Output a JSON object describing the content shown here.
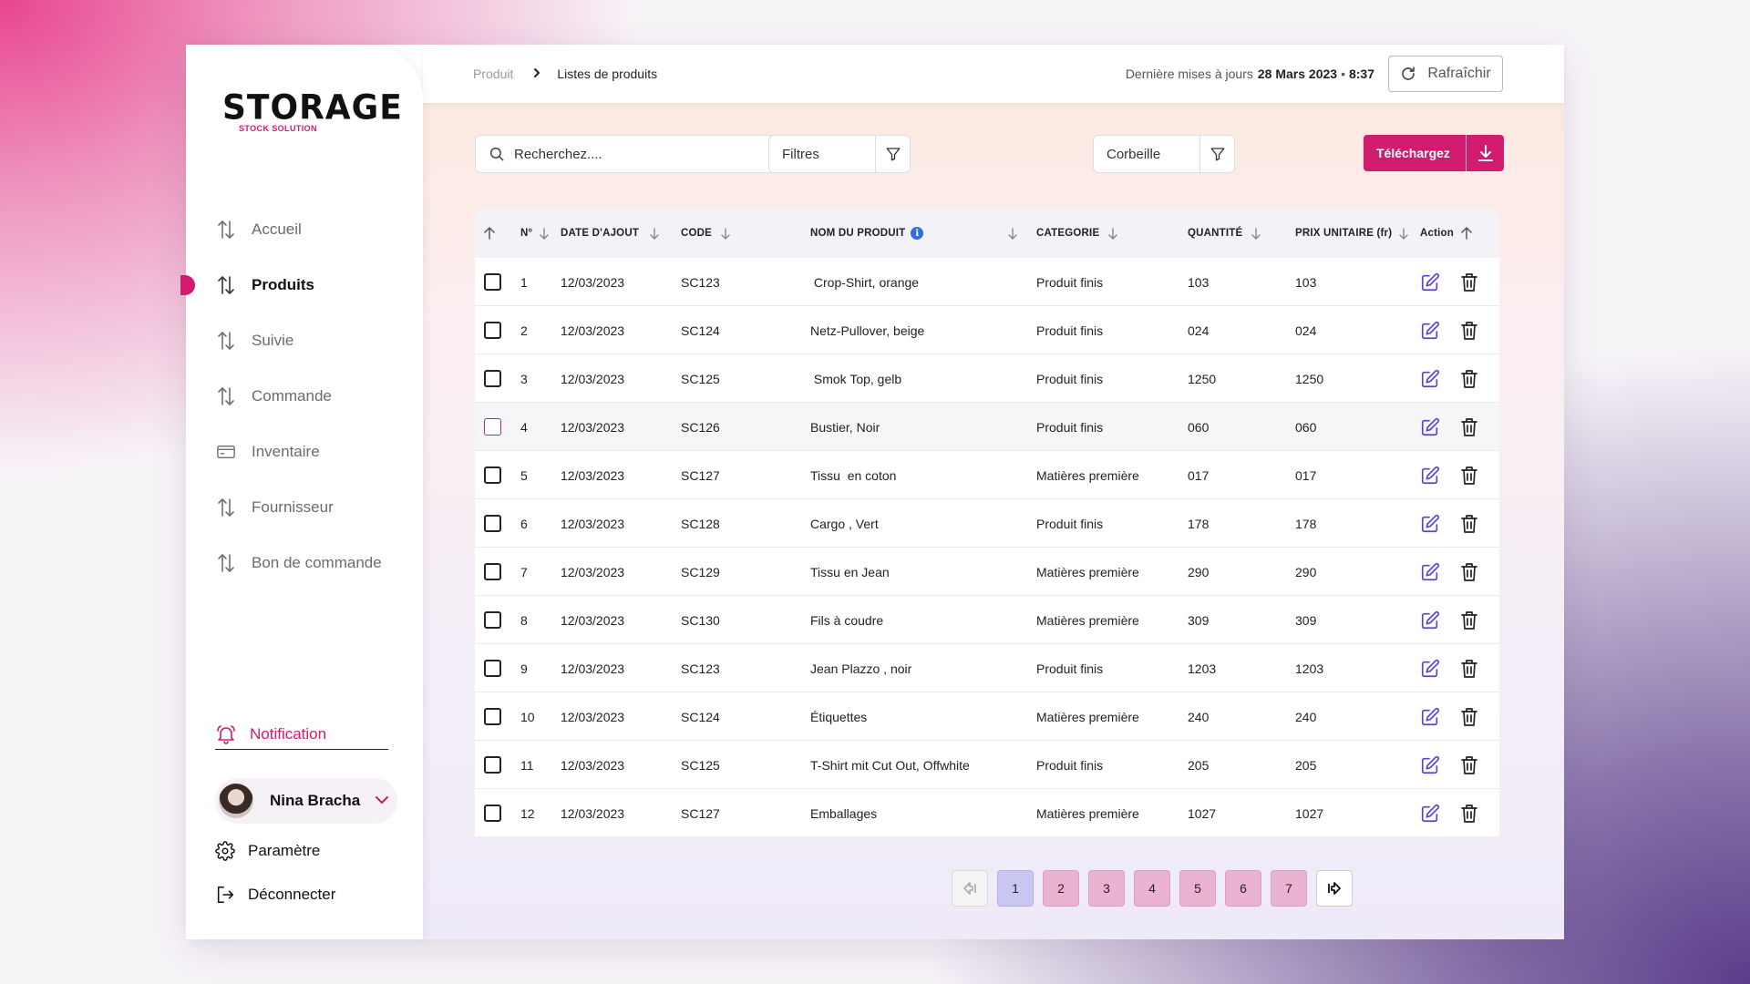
{
  "brand": {
    "name": "STORAGE",
    "tagline": "STOCK SOLUTION",
    "accent": "#d01b6e"
  },
  "nav": [
    {
      "label": "Accueil",
      "icon": "sort-arrows-icon",
      "active": false
    },
    {
      "label": "Produits",
      "icon": "sort-arrows-icon",
      "active": true
    },
    {
      "label": "Suivie",
      "icon": "sort-arrows-icon",
      "active": false
    },
    {
      "label": "Commande",
      "icon": "sort-arrows-icon",
      "active": false
    },
    {
      "label": "Inventaire",
      "icon": "card-icon",
      "active": false
    },
    {
      "label": "Fournisseur",
      "icon": "sort-arrows-icon",
      "active": false
    },
    {
      "label": "Bon de commande",
      "icon": "sort-arrows-icon",
      "active": false
    }
  ],
  "notification": {
    "label": "Notification",
    "icon": "bell-icon"
  },
  "user": {
    "name": "Nina Bracha"
  },
  "settings": {
    "label": "Paramètre",
    "icon": "gear-icon"
  },
  "logout": {
    "label": "Déconnecter",
    "icon": "logout-icon"
  },
  "breadcrumb": {
    "parent": "Produit",
    "current": "Listes de produits"
  },
  "update": {
    "prefix": "Dernière mises à jours",
    "date": "28 Mars 2023",
    "sep": "•",
    "time": "8:37"
  },
  "refresh": {
    "label": "Rafraîchir"
  },
  "search": {
    "placeholder": "Recherchez...."
  },
  "filters": {
    "label": "Filtres"
  },
  "trash": {
    "label": "Corbeille"
  },
  "download": {
    "label": "Téléchargez"
  },
  "table": {
    "headers": {
      "num": "N°",
      "date": "DATE D'AJOUT",
      "code": "CODE",
      "name": "NOM DU PRODUIT",
      "category": "CATEGORIE",
      "qty": "QUANTITÉ",
      "price": "PRIX UNITAIRE (fr)",
      "action": "Action"
    },
    "rows": [
      {
        "num": "1",
        "date": "12/03/2023",
        "code": "SC123",
        "name": " Crop-Shirt, orange",
        "category": "Produit finis",
        "qty": "103",
        "price": "103"
      },
      {
        "num": "2",
        "date": "12/03/2023",
        "code": "SC124",
        "name": "Netz-Pullover, beige",
        "category": "Produit finis",
        "qty": "024",
        "price": "024"
      },
      {
        "num": "3",
        "date": "12/03/2023",
        "code": "SC125",
        "name": " Smok Top, gelb",
        "category": "Produit finis",
        "qty": "1250",
        "price": "1250"
      },
      {
        "num": "4",
        "date": "12/03/2023",
        "code": "SC126",
        "name": "Bustier, Noir",
        "category": "Produit finis",
        "qty": "060",
        "price": "060"
      },
      {
        "num": "5",
        "date": "12/03/2023",
        "code": "SC127",
        "name": "Tissu  en coton",
        "category": "Matières première",
        "qty": "017",
        "price": "017"
      },
      {
        "num": "6",
        "date": "12/03/2023",
        "code": "SC128",
        "name": "Cargo , Vert",
        "category": "Produit finis",
        "qty": "178",
        "price": "178"
      },
      {
        "num": "7",
        "date": "12/03/2023",
        "code": "SC129",
        "name": "Tissu en Jean",
        "category": "Matières première",
        "qty": "290",
        "price": "290"
      },
      {
        "num": "8",
        "date": "12/03/2023",
        "code": "SC130",
        "name": "Fils à coudre",
        "category": "Matières première",
        "qty": "309",
        "price": "309"
      },
      {
        "num": "9",
        "date": "12/03/2023",
        "code": "SC123",
        "name": "Jean Plazzo , noir",
        "category": "Produit finis",
        "qty": "1203",
        "price": "1203"
      },
      {
        "num": "10",
        "date": "12/03/2023",
        "code": "SC124",
        "name": "Étiquettes",
        "category": "Matières première",
        "qty": "240",
        "price": "240"
      },
      {
        "num": "11",
        "date": "12/03/2023",
        "code": "SC125",
        "name": "T-Shirt mit Cut Out, Offwhite",
        "category": "Produit finis",
        "qty": "205",
        "price": "205"
      },
      {
        "num": "12",
        "date": "12/03/2023",
        "code": "SC127",
        "name": "Emballages",
        "category": "Matières première",
        "qty": "1027",
        "price": "1027"
      }
    ]
  },
  "pagination": {
    "pages": [
      "1",
      "2",
      "3",
      "4",
      "5",
      "6",
      "7"
    ],
    "current": "1"
  },
  "colors": {
    "accent": "#d01b6e",
    "edit_icon": "#5b3fd6",
    "page_current": "#c9c6f3",
    "page_other": "#eab3d2"
  }
}
